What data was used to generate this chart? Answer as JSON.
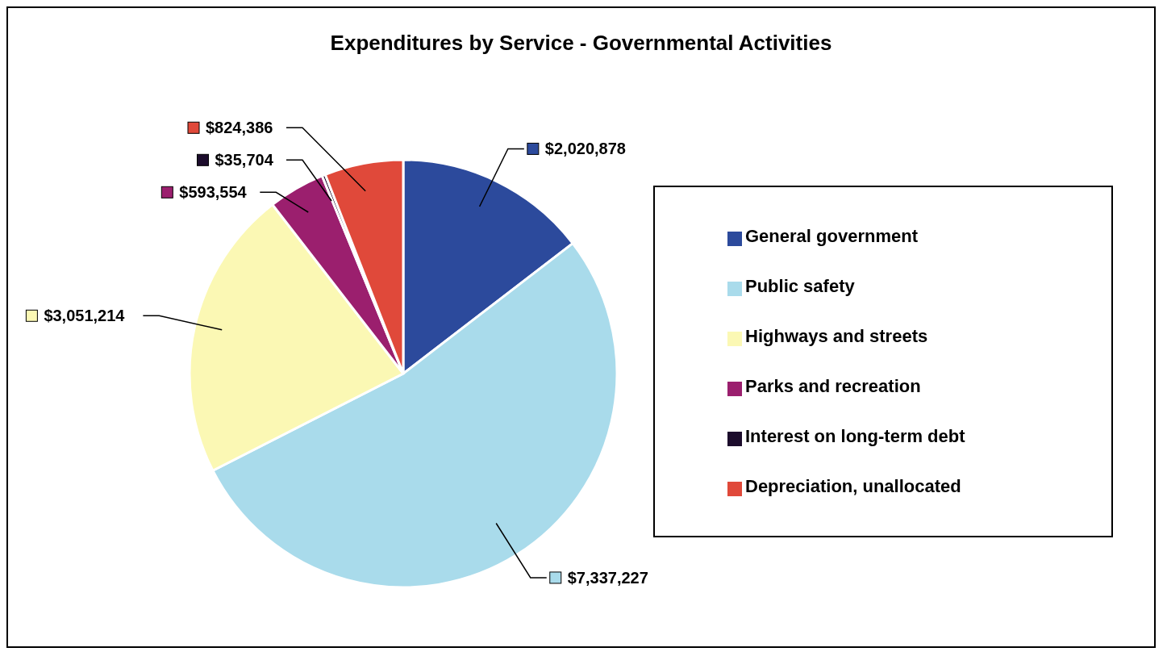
{
  "chart_data": {
    "type": "pie",
    "title": "Expenditures by Service - Governmental Activities",
    "categories": [
      "General government",
      "Public safety",
      "Highways and streets",
      "Parks and recreation",
      "Interest on long-term debt",
      "Depreciation, unallocated"
    ],
    "values": [
      2020878,
      7337227,
      3051214,
      593554,
      35704,
      824386
    ],
    "value_labels": [
      "$2,020,878",
      "$7,337,227",
      "$3,051,214",
      "$593,554",
      "$35,704",
      "$824,386"
    ],
    "colors": [
      "#2c4a9c",
      "#a9dbeb",
      "#fbf8b4",
      "#9b1f6e",
      "#1c0c2c",
      "#e0493a"
    ],
    "legend": "right"
  }
}
